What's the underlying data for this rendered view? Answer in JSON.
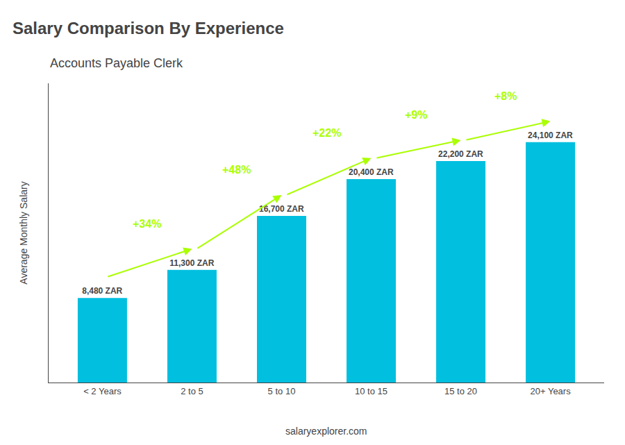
{
  "chart_data": {
    "type": "bar",
    "title": "Salary Comparison By Experience",
    "subtitle": "Accounts Payable Clerk",
    "categories": [
      "< 2 Years",
      "2 to 5",
      "5 to 10",
      "10 to 15",
      "15 to 20",
      "20+ Years"
    ],
    "values": [
      8480,
      11300,
      16700,
      20400,
      22200,
      24100
    ],
    "value_labels": [
      "8,480 ZAR",
      "11,300 ZAR",
      "16,700 ZAR",
      "20,400 ZAR",
      "22,200 ZAR",
      "24,100 ZAR"
    ],
    "data_labels": true,
    "color": "#00BFDF",
    "ylabel": "Average Monthly Salary",
    "ylim": [
      0,
      30000
    ],
    "tick_labels": "x",
    "grid": false,
    "annotations": [
      {
        "text": "+34%",
        "from": "< 2 Years",
        "to": "2 to 5",
        "color": "#AAFF00"
      },
      {
        "text": "+48%",
        "from": "2 to 5",
        "to": "5 to 10",
        "color": "#AAFF00"
      },
      {
        "text": "+22%",
        "from": "5 to 10",
        "to": "10 to 15",
        "color": "#AAFF00"
      },
      {
        "text": "+9%",
        "from": "10 to 15",
        "to": "15 to 20",
        "color": "#AAFF00"
      },
      {
        "text": "+8%",
        "from": "15 to 20",
        "to": "20+ Years",
        "color": "#AAFF00"
      },
      {
        "text": "salaryexplorer.com"
      }
    ]
  }
}
